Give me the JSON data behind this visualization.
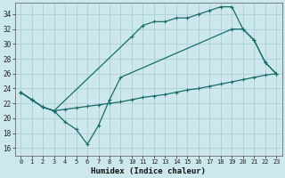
{
  "xlabel": "Humidex (Indice chaleur)",
  "background_color": "#cce8ec",
  "grid_color": "#aacfd4",
  "line_color": "#1a6b6b",
  "xlim": [
    -0.5,
    23.5
  ],
  "ylim": [
    15.0,
    35.5
  ],
  "xticks": [
    0,
    1,
    2,
    3,
    4,
    5,
    6,
    7,
    8,
    9,
    10,
    11,
    12,
    13,
    14,
    15,
    16,
    17,
    18,
    19,
    20,
    21,
    22,
    23
  ],
  "yticks": [
    16,
    18,
    20,
    22,
    24,
    26,
    28,
    30,
    32,
    34
  ],
  "curve_top_x": [
    0,
    1,
    2,
    3,
    10,
    11,
    12,
    13,
    14,
    15,
    16,
    17,
    18,
    19,
    20,
    21,
    22,
    23
  ],
  "curve_top_y": [
    23.5,
    22.5,
    21.5,
    21.0,
    31.0,
    32.5,
    33.0,
    33.0,
    33.5,
    33.5,
    34.0,
    34.5,
    35.0,
    35.0,
    32.0,
    30.5,
    27.5,
    26.0
  ],
  "curve_dip_x": [
    0,
    1,
    2,
    3,
    4,
    5,
    6,
    7,
    8,
    9,
    19,
    20,
    21,
    22,
    23
  ],
  "curve_dip_y": [
    23.5,
    22.5,
    21.5,
    21.0,
    19.5,
    18.5,
    16.5,
    19.0,
    22.5,
    25.5,
    32.0,
    32.0,
    30.5,
    27.5,
    26.0
  ],
  "curve_straight_x": [
    0,
    1,
    2,
    3,
    4,
    5,
    6,
    7,
    8,
    9,
    10,
    11,
    12,
    13,
    14,
    15,
    16,
    17,
    18,
    19,
    20,
    21,
    22,
    23
  ],
  "curve_straight_y": [
    23.5,
    22.5,
    21.5,
    21.0,
    21.2,
    21.4,
    21.6,
    21.8,
    22.0,
    22.2,
    22.5,
    22.8,
    23.0,
    23.2,
    23.5,
    23.8,
    24.0,
    24.3,
    24.6,
    24.9,
    25.2,
    25.5,
    25.8,
    26.0
  ]
}
